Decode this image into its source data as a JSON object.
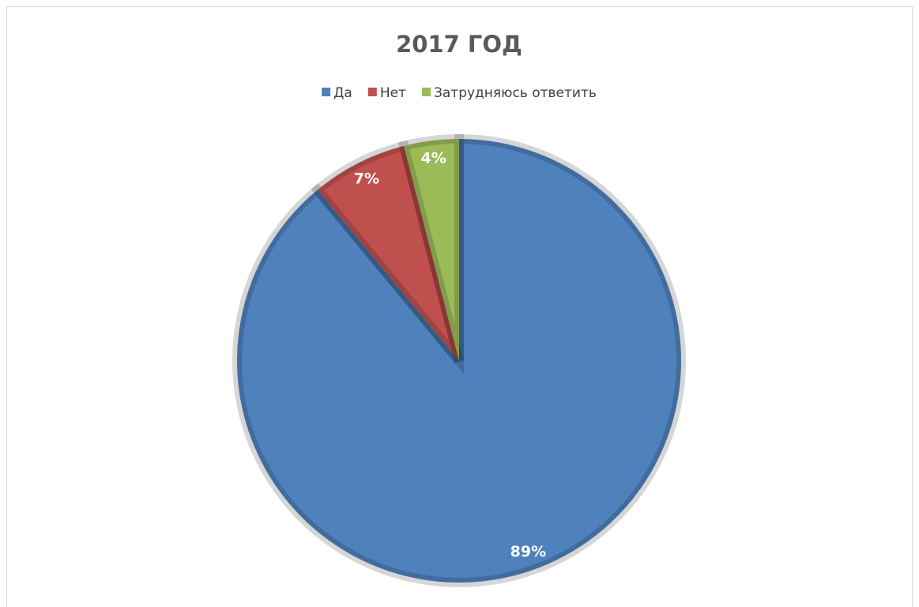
{
  "chart_data": {
    "type": "pie",
    "title": "2017 ГОД",
    "categories": [
      "Да",
      "Нет",
      "Затрудняюсь ответить"
    ],
    "values": [
      89,
      7,
      4
    ],
    "value_labels": [
      "89%",
      "7%",
      "4%"
    ],
    "colors": [
      "#4f81bd",
      "#c0504d",
      "#9bbb59"
    ],
    "legend": "top"
  }
}
